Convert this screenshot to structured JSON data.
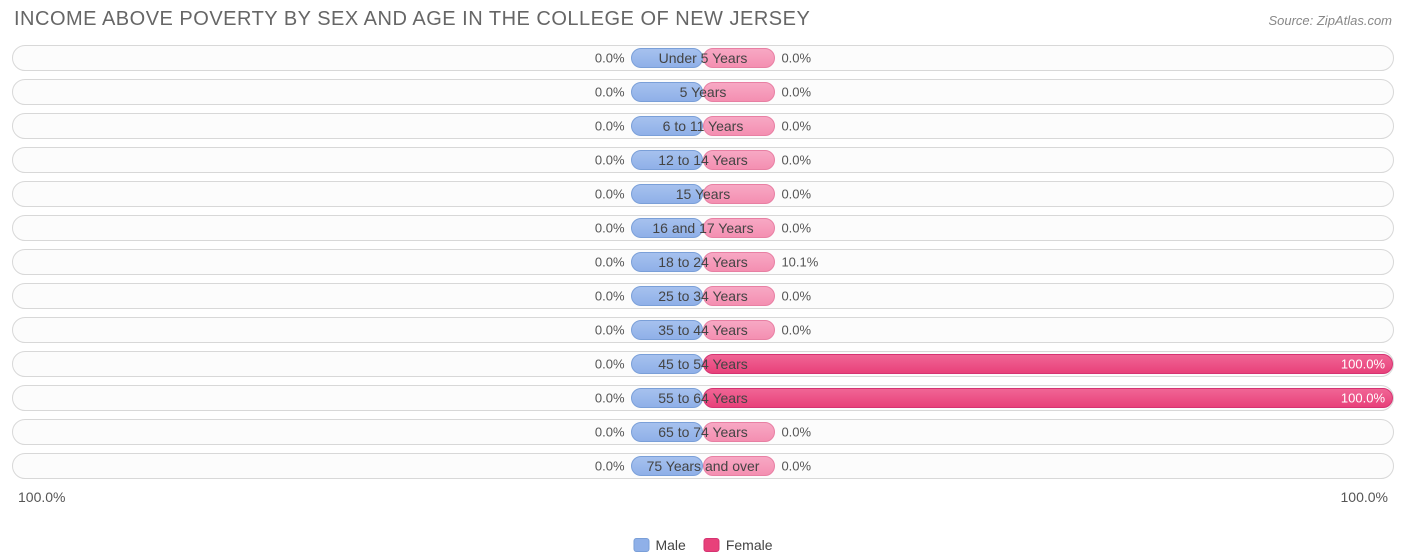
{
  "title": "INCOME ABOVE POVERTY BY SEX AND AGE IN THE COLLEGE OF NEW JERSEY",
  "source": "Source: ZipAtlas.com",
  "axis": {
    "left": "100.0%",
    "right": "100.0%"
  },
  "legend": {
    "male": "Male",
    "female": "Female"
  },
  "colors": {
    "male_fill_top": "#a6c1ee",
    "male_fill_bottom": "#8fb0e8",
    "male_border": "#7a9fd8",
    "female_fill_top": "#f7a8c4",
    "female_fill_bottom": "#f48fb1",
    "female_border": "#e87fa3",
    "female_full_top": "#f06595",
    "female_full_bottom": "#e8417a",
    "female_full_border": "#d53372",
    "row_border": "#d8d8d8",
    "row_bg": "#fcfcfc",
    "text": "#555555",
    "title_color": "#666666",
    "background": "#ffffff"
  },
  "chart": {
    "type": "diverging-bar",
    "min_bar_pct": 10.5,
    "scale_max": 100.0,
    "rows": [
      {
        "category": "Under 5 Years",
        "male": 0.0,
        "male_label": "0.0%",
        "female": 0.0,
        "female_label": "0.0%"
      },
      {
        "category": "5 Years",
        "male": 0.0,
        "male_label": "0.0%",
        "female": 0.0,
        "female_label": "0.0%"
      },
      {
        "category": "6 to 11 Years",
        "male": 0.0,
        "male_label": "0.0%",
        "female": 0.0,
        "female_label": "0.0%"
      },
      {
        "category": "12 to 14 Years",
        "male": 0.0,
        "male_label": "0.0%",
        "female": 0.0,
        "female_label": "0.0%"
      },
      {
        "category": "15 Years",
        "male": 0.0,
        "male_label": "0.0%",
        "female": 0.0,
        "female_label": "0.0%"
      },
      {
        "category": "16 and 17 Years",
        "male": 0.0,
        "male_label": "0.0%",
        "female": 0.0,
        "female_label": "0.0%"
      },
      {
        "category": "18 to 24 Years",
        "male": 0.0,
        "male_label": "0.0%",
        "female": 10.1,
        "female_label": "10.1%"
      },
      {
        "category": "25 to 34 Years",
        "male": 0.0,
        "male_label": "0.0%",
        "female": 0.0,
        "female_label": "0.0%"
      },
      {
        "category": "35 to 44 Years",
        "male": 0.0,
        "male_label": "0.0%",
        "female": 0.0,
        "female_label": "0.0%"
      },
      {
        "category": "45 to 54 Years",
        "male": 0.0,
        "male_label": "0.0%",
        "female": 100.0,
        "female_label": "100.0%"
      },
      {
        "category": "55 to 64 Years",
        "male": 0.0,
        "male_label": "0.0%",
        "female": 100.0,
        "female_label": "100.0%"
      },
      {
        "category": "65 to 74 Years",
        "male": 0.0,
        "male_label": "0.0%",
        "female": 0.0,
        "female_label": "0.0%"
      },
      {
        "category": "75 Years and over",
        "male": 0.0,
        "male_label": "0.0%",
        "female": 0.0,
        "female_label": "0.0%"
      }
    ]
  }
}
